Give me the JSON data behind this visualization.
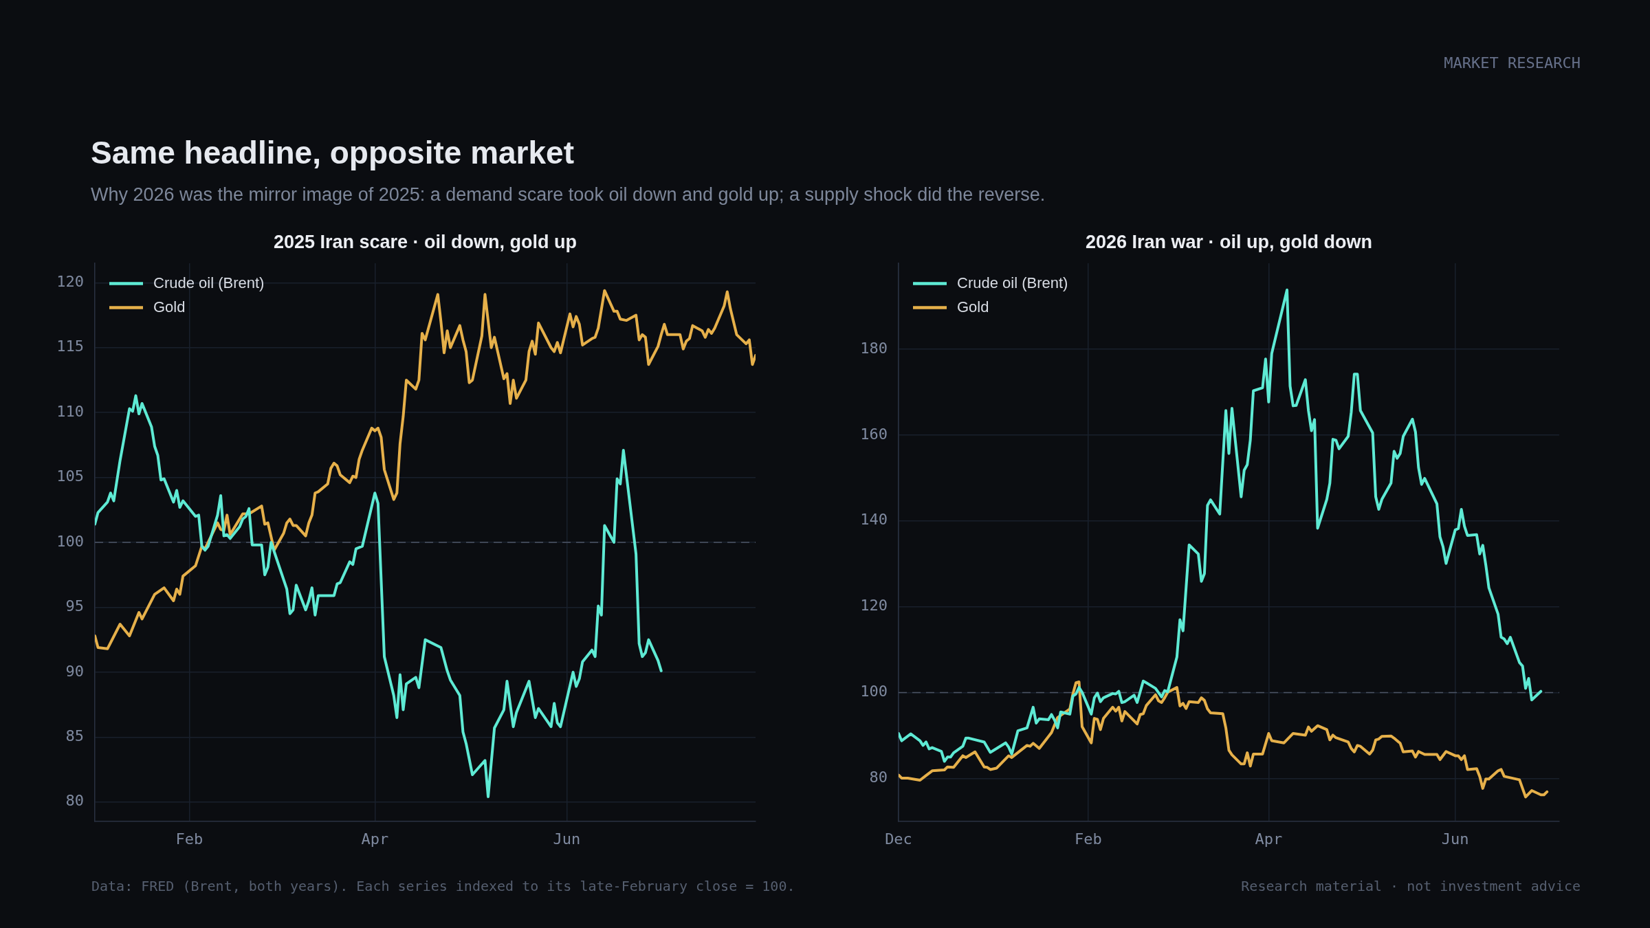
{
  "chart_data": [
    {
      "type": "line",
      "title": "2025 Iran scare · oil down, gold up",
      "annotations": [
        "Same headline, opposite market",
        "Why 2026 was the mirror image of 2025: a demand scare took oil down and gold up; a supply shock did the reverse.",
        "Data: FRED (Brent, both years). Each series indexed to its late-February close = 100."
      ],
      "xlim": [
        "2025-01-02",
        "2025-07-31"
      ],
      "xticks": [
        {
          "value": "2025-02-01",
          "label": "Feb"
        },
        {
          "value": "2025-04-01",
          "label": "Apr"
        },
        {
          "value": "2025-06-01",
          "label": "Jun"
        }
      ],
      "ylim": [
        78.5,
        121.5
      ],
      "yticks": [
        80,
        85,
        90,
        95,
        100,
        105,
        110,
        115,
        120
      ],
      "grid": true,
      "legend": "top left",
      "marker": "none",
      "ref_lines": [
        {
          "axis": "y",
          "value": 100,
          "color": "#4d5566",
          "line_style": "dashed"
        }
      ],
      "series": [
        {
          "name": "Crude oil (Brent)",
          "color": "#5eead4",
          "x": [
            "2025-01-02",
            "2025-01-03",
            "2025-01-06",
            "2025-01-07",
            "2025-01-08",
            "2025-01-10",
            "2025-01-13",
            "2025-01-14",
            "2025-01-15",
            "2025-01-16",
            "2025-01-17",
            "2025-01-20",
            "2025-01-21",
            "2025-01-22",
            "2025-01-23",
            "2025-01-24",
            "2025-01-27",
            "2025-01-28",
            "2025-01-29",
            "2025-01-30",
            "2025-02-03",
            "2025-02-04",
            "2025-02-05",
            "2025-02-06",
            "2025-02-07",
            "2025-02-10",
            "2025-02-11",
            "2025-02-12",
            "2025-02-13",
            "2025-02-14",
            "2025-02-17",
            "2025-02-18",
            "2025-02-19",
            "2025-02-20",
            "2025-02-21",
            "2025-02-24",
            "2025-02-25",
            "2025-02-26",
            "2025-02-27",
            "2025-03-04",
            "2025-03-05",
            "2025-03-06",
            "2025-03-07",
            "2025-03-10",
            "2025-03-11",
            "2025-03-12",
            "2025-03-13",
            "2025-03-14",
            "2025-03-19",
            "2025-03-20",
            "2025-03-21",
            "2025-03-24",
            "2025-03-25",
            "2025-03-26",
            "2025-03-28",
            "2025-04-01",
            "2025-04-02",
            "2025-04-04",
            "2025-04-07",
            "2025-04-08",
            "2025-04-09",
            "2025-04-10",
            "2025-04-11",
            "2025-04-14",
            "2025-04-15",
            "2025-04-17",
            "2025-04-22",
            "2025-04-24",
            "2025-04-25",
            "2025-04-28",
            "2025-04-29",
            "2025-04-30",
            "2025-05-02",
            "2025-05-06",
            "2025-05-07",
            "2025-05-09",
            "2025-05-12",
            "2025-05-13",
            "2025-05-15",
            "2025-05-16",
            "2025-05-20",
            "2025-05-22",
            "2025-05-23",
            "2025-05-27",
            "2025-05-28",
            "2025-05-29",
            "2025-05-30",
            "2025-06-03",
            "2025-06-04",
            "2025-06-05",
            "2025-06-06",
            "2025-06-09",
            "2025-06-10",
            "2025-06-11",
            "2025-06-12",
            "2025-06-13",
            "2025-06-16",
            "2025-06-17",
            "2025-06-18",
            "2025-06-19",
            "2025-06-23",
            "2025-06-24",
            "2025-06-25",
            "2025-06-26",
            "2025-06-27",
            "2025-06-30",
            "2025-07-01"
          ],
          "values": [
            101.4,
            102.3,
            103.1,
            103.8,
            103.2,
            106.3,
            110.3,
            110.1,
            111.3,
            109.9,
            110.7,
            108.9,
            107.4,
            106.7,
            104.8,
            104.9,
            103.1,
            104.0,
            102.7,
            103.2,
            102.0,
            102.1,
            99.7,
            99.4,
            99.7,
            102.1,
            103.6,
            100.5,
            100.6,
            100.3,
            101.2,
            101.8,
            102.0,
            102.6,
            99.8,
            99.8,
            97.5,
            98.1,
            100.0,
            96.4,
            94.5,
            94.8,
            96.7,
            94.8,
            95.5,
            96.5,
            94.4,
            95.9,
            95.9,
            96.8,
            96.9,
            98.5,
            98.3,
            99.5,
            99.7,
            103.8,
            103.0,
            91.2,
            88.2,
            86.5,
            89.8,
            87.1,
            89.1,
            89.6,
            88.8,
            92.5,
            91.9,
            90.1,
            89.4,
            88.2,
            85.4,
            84.5,
            82.1,
            83.2,
            80.4,
            85.7,
            87.1,
            89.3,
            85.8,
            86.9,
            89.3,
            86.5,
            87.2,
            85.8,
            87.6,
            86.1,
            85.8,
            90.0,
            88.9,
            89.5,
            90.8,
            91.7,
            91.2,
            95.1,
            94.4,
            101.3,
            100.0,
            104.9,
            104.5,
            107.1,
            99.1,
            92.2,
            91.2,
            91.5,
            92.5,
            90.9,
            90.1
          ]
        },
        {
          "name": "Gold",
          "color": "#e6b04a",
          "x": [
            "2025-01-02",
            "2025-01-03",
            "2025-01-06",
            "2025-01-10",
            "2025-01-13",
            "2025-01-16",
            "2025-01-17",
            "2025-01-21",
            "2025-01-24",
            "2025-01-27",
            "2025-01-28",
            "2025-01-29",
            "2025-01-30",
            "2025-02-03",
            "2025-02-05",
            "2025-02-06",
            "2025-02-10",
            "2025-02-11",
            "2025-02-12",
            "2025-02-13",
            "2025-02-14",
            "2025-02-18",
            "2025-02-20",
            "2025-02-24",
            "2025-02-25",
            "2025-02-26",
            "2025-02-28",
            "2025-03-03",
            "2025-03-04",
            "2025-03-05",
            "2025-03-06",
            "2025-03-07",
            "2025-03-10",
            "2025-03-11",
            "2025-03-12",
            "2025-03-13",
            "2025-03-14",
            "2025-03-17",
            "2025-03-18",
            "2025-03-19",
            "2025-03-20",
            "2025-03-21",
            "2025-03-24",
            "2025-03-25",
            "2025-03-26",
            "2025-03-27",
            "2025-03-28",
            "2025-03-31",
            "2025-04-01",
            "2025-04-02",
            "2025-04-03",
            "2025-04-04",
            "2025-04-07",
            "2025-04-08",
            "2025-04-09",
            "2025-04-10",
            "2025-04-11",
            "2025-04-14",
            "2025-04-15",
            "2025-04-16",
            "2025-04-17",
            "2025-04-21",
            "2025-04-22",
            "2025-04-23",
            "2025-04-24",
            "2025-04-25",
            "2025-04-28",
            "2025-04-29",
            "2025-04-30",
            "2025-05-01",
            "2025-05-02",
            "2025-05-05",
            "2025-05-06",
            "2025-05-08",
            "2025-05-09",
            "2025-05-12",
            "2025-05-13",
            "2025-05-14",
            "2025-05-15",
            "2025-05-16",
            "2025-05-19",
            "2025-05-20",
            "2025-05-21",
            "2025-05-22",
            "2025-05-23",
            "2025-05-27",
            "2025-05-28",
            "2025-05-29",
            "2025-05-30",
            "2025-06-02",
            "2025-06-03",
            "2025-06-04",
            "2025-06-05",
            "2025-06-06",
            "2025-06-09",
            "2025-06-10",
            "2025-06-11",
            "2025-06-13",
            "2025-06-16",
            "2025-06-17",
            "2025-06-18",
            "2025-06-20",
            "2025-06-23",
            "2025-06-24",
            "2025-06-25",
            "2025-06-26",
            "2025-06-27",
            "2025-06-30",
            "2025-07-01",
            "2025-07-02",
            "2025-07-03",
            "2025-07-07",
            "2025-07-08",
            "2025-07-09",
            "2025-07-10",
            "2025-07-11",
            "2025-07-14",
            "2025-07-15",
            "2025-07-16",
            "2025-07-17",
            "2025-07-18",
            "2025-07-21",
            "2025-07-22",
            "2025-07-23",
            "2025-07-25",
            "2025-07-28",
            "2025-07-29",
            "2025-07-30",
            "2025-07-31"
          ],
          "values": [
            92.8,
            91.9,
            91.8,
            93.7,
            92.8,
            94.6,
            94.1,
            96.0,
            96.5,
            95.5,
            96.4,
            96.0,
            97.4,
            98.2,
            99.7,
            99.5,
            101.5,
            101.0,
            100.9,
            102.1,
            100.6,
            102.2,
            102.2,
            102.8,
            101.4,
            101.5,
            99.4,
            100.7,
            101.5,
            101.8,
            101.3,
            101.3,
            100.5,
            101.5,
            102.1,
            103.8,
            103.9,
            104.5,
            105.7,
            106.1,
            105.9,
            105.2,
            104.6,
            105.1,
            105.0,
            106.4,
            107.1,
            108.8,
            108.6,
            108.8,
            108.1,
            105.6,
            103.3,
            103.8,
            107.6,
            109.7,
            112.5,
            111.8,
            112.5,
            116.1,
            115.6,
            119.1,
            117.0,
            114.6,
            116.3,
            115.0,
            116.7,
            115.6,
            114.7,
            112.3,
            112.5,
            115.9,
            119.1,
            115.0,
            115.8,
            112.6,
            113.0,
            110.7,
            112.5,
            111.1,
            112.5,
            114.7,
            115.5,
            114.5,
            116.9,
            115.0,
            114.7,
            115.4,
            114.6,
            117.6,
            116.6,
            117.4,
            116.8,
            115.2,
            115.7,
            115.8,
            116.5,
            119.4,
            117.8,
            117.8,
            117.2,
            117.1,
            117.5,
            115.6,
            116.0,
            115.8,
            113.7,
            115.1,
            116.0,
            116.8,
            116.0,
            116.0,
            114.9,
            115.5,
            115.7,
            116.7,
            116.3,
            115.8,
            116.4,
            116.1,
            116.5,
            118.2,
            119.3,
            118.0,
            116.0,
            115.3,
            115.6,
            113.7,
            114.4
          ]
        }
      ]
    },
    {
      "type": "line",
      "title": "2026 Iran war · oil up, gold down",
      "annotations": [
        "MARKET RESEARCH",
        "Research material · not investment advice"
      ],
      "xlim": [
        "2025-12-01",
        "2026-07-05"
      ],
      "xticks": [
        {
          "value": "2025-12-01",
          "label": "Dec"
        },
        {
          "value": "2026-02-01",
          "label": "Feb"
        },
        {
          "value": "2026-04-01",
          "label": "Apr"
        },
        {
          "value": "2026-06-01",
          "label": "Jun"
        }
      ],
      "ylim": [
        70,
        200
      ],
      "yticks": [
        80,
        100,
        120,
        140,
        160,
        180
      ],
      "grid": true,
      "legend": "top left",
      "marker": "none",
      "ref_lines": [
        {
          "axis": "y",
          "value": 100,
          "color": "#4d5566",
          "line_style": "dashed"
        }
      ],
      "series": [
        {
          "name": "Crude oil (Brent)",
          "color": "#5eead4",
          "x": [
            "2025-12-01",
            "2025-12-02",
            "2025-12-05",
            "2025-12-08",
            "2025-12-09",
            "2025-12-10",
            "2025-12-11",
            "2025-12-12",
            "2025-12-15",
            "2025-12-16",
            "2025-12-17",
            "2025-12-18",
            "2025-12-19",
            "2025-12-22",
            "2025-12-23",
            "2025-12-24",
            "2025-12-29",
            "2025-12-31",
            "2026-01-05",
            "2026-01-06",
            "2026-01-07",
            "2026-01-09",
            "2026-01-12",
            "2026-01-14",
            "2026-01-15",
            "2026-01-16",
            "2026-01-19",
            "2026-01-20",
            "2026-01-21",
            "2026-01-22",
            "2026-01-23",
            "2026-01-26",
            "2026-01-27",
            "2026-01-28",
            "2026-01-29",
            "2026-01-30",
            "2026-02-02",
            "2026-02-03",
            "2026-02-04",
            "2026-02-05",
            "2026-02-06",
            "2026-02-09",
            "2026-02-10",
            "2026-02-11",
            "2026-02-12",
            "2026-02-13",
            "2026-02-16",
            "2026-02-17",
            "2026-02-19",
            "2026-02-20",
            "2026-02-23",
            "2026-02-25",
            "2026-02-26",
            "2026-02-27",
            "2026-03-02",
            "2026-03-03",
            "2026-03-04",
            "2026-03-06",
            "2026-03-09",
            "2026-03-10",
            "2026-03-11",
            "2026-03-12",
            "2026-03-13",
            "2026-03-16",
            "2026-03-18",
            "2026-03-19",
            "2026-03-20",
            "2026-03-23",
            "2026-03-24",
            "2026-03-25",
            "2026-03-26",
            "2026-03-27",
            "2026-03-30",
            "2026-03-31",
            "2026-04-01",
            "2026-04-02",
            "2026-04-07",
            "2026-04-08",
            "2026-04-09",
            "2026-04-10",
            "2026-04-13",
            "2026-04-14",
            "2026-04-15",
            "2026-04-16",
            "2026-04-17",
            "2026-04-20",
            "2026-04-21",
            "2026-04-22",
            "2026-04-23",
            "2026-04-24",
            "2026-04-27",
            "2026-04-28",
            "2026-04-29",
            "2026-04-30",
            "2026-05-01",
            "2026-05-05",
            "2026-05-06",
            "2026-05-07",
            "2026-05-08",
            "2026-05-11",
            "2026-05-12",
            "2026-05-13",
            "2026-05-14",
            "2026-05-15",
            "2026-05-18",
            "2026-05-19",
            "2026-05-20",
            "2026-05-21",
            "2026-05-22",
            "2026-05-26",
            "2026-05-27",
            "2026-05-28",
            "2026-05-29",
            "2026-06-01",
            "2026-06-02",
            "2026-06-03",
            "2026-06-04",
            "2026-06-05",
            "2026-06-08",
            "2026-06-09",
            "2026-06-10",
            "2026-06-11",
            "2026-06-12",
            "2026-06-15",
            "2026-06-16",
            "2026-06-17",
            "2026-06-18",
            "2026-06-19",
            "2026-06-22",
            "2026-06-23",
            "2026-06-24",
            "2026-06-25",
            "2026-06-26",
            "2026-06-29"
          ],
          "values": [
            90.5,
            88.8,
            90.4,
            88.8,
            87.7,
            88.5,
            86.9,
            87.2,
            86.3,
            84.0,
            85.0,
            85.0,
            86.0,
            87.5,
            89.4,
            89.4,
            88.5,
            86.1,
            88.3,
            87.3,
            85.7,
            91.1,
            91.8,
            96.6,
            92.9,
            93.9,
            93.7,
            94.9,
            93.6,
            91.8,
            95.5,
            95.0,
            99.2,
            99.7,
            101.2,
            100.1,
            95.0,
            98.8,
            99.9,
            97.9,
            98.8,
            99.8,
            99.7,
            100.3,
            97.7,
            97.9,
            99.4,
            97.7,
            102.7,
            102.3,
            101.0,
            99.0,
            100.5,
            100.2,
            108.3,
            117.0,
            114.4,
            134.4,
            132.3,
            125.9,
            127.7,
            143.6,
            144.9,
            141.6,
            165.7,
            155.7,
            166.2,
            145.6,
            151.8,
            153.1,
            158.8,
            170.3,
            171.0,
            177.7,
            167.7,
            179.0,
            193.8,
            171.4,
            166.8,
            166.9,
            172.9,
            165.7,
            161.0,
            163.6,
            138.3,
            145.0,
            148.8,
            159.0,
            158.8,
            156.8,
            159.7,
            165.3,
            174.2,
            174.2,
            165.7,
            160.5,
            145.6,
            142.7,
            145.0,
            148.8,
            156.2,
            154.6,
            155.7,
            159.7,
            163.7,
            160.7,
            152.4,
            148.5,
            149.9,
            144.0,
            136.3,
            134.0,
            130.1,
            137.9,
            138.2,
            142.7,
            138.8,
            136.6,
            136.8,
            132.3,
            134.3,
            129.7,
            124.4,
            118.3,
            112.9,
            112.5,
            111.4,
            112.9,
            107.0,
            106.2,
            101.0,
            103.3,
            98.3,
            100.3
          ]
        },
        {
          "name": "Gold",
          "color": "#e6b04a",
          "x": [
            "2025-12-01",
            "2025-12-02",
            "2025-12-04",
            "2025-12-08",
            "2025-12-10",
            "2025-12-12",
            "2025-12-16",
            "2025-12-17",
            "2025-12-19",
            "2025-12-22",
            "2025-12-23",
            "2025-12-26",
            "2025-12-29",
            "2025-12-30",
            "2025-12-31",
            "2026-01-02",
            "2026-01-06",
            "2026-01-07",
            "2026-01-12",
            "2026-01-13",
            "2026-01-14",
            "2026-01-16",
            "2026-01-20",
            "2026-01-22",
            "2026-01-26",
            "2026-01-27",
            "2026-01-28",
            "2026-01-29",
            "2026-01-30",
            "2026-02-02",
            "2026-02-03",
            "2026-02-04",
            "2026-02-05",
            "2026-02-06",
            "2026-02-09",
            "2026-02-10",
            "2026-02-11",
            "2026-02-12",
            "2026-02-13",
            "2026-02-17",
            "2026-02-18",
            "2026-02-19",
            "2026-02-20",
            "2026-02-23",
            "2026-02-24",
            "2026-02-25",
            "2026-02-26",
            "2026-02-27",
            "2026-03-02",
            "2026-03-03",
            "2026-03-04",
            "2026-03-05",
            "2026-03-06",
            "2026-03-09",
            "2026-03-10",
            "2026-03-11",
            "2026-03-12",
            "2026-03-13",
            "2026-03-17",
            "2026-03-18",
            "2026-03-19",
            "2026-03-20",
            "2026-03-23",
            "2026-03-24",
            "2026-03-25",
            "2026-03-26",
            "2026-03-27",
            "2026-03-30",
            "2026-04-01",
            "2026-04-02",
            "2026-04-06",
            "2026-04-09",
            "2026-04-13",
            "2026-04-14",
            "2026-04-15",
            "2026-04-17",
            "2026-04-20",
            "2026-04-21",
            "2026-04-22",
            "2026-04-23",
            "2026-04-27",
            "2026-04-28",
            "2026-04-29",
            "2026-04-30",
            "2026-05-01",
            "2026-05-04",
            "2026-05-05",
            "2026-05-06",
            "2026-05-07",
            "2026-05-08",
            "2026-05-11",
            "2026-05-12",
            "2026-05-14",
            "2026-05-15",
            "2026-05-18",
            "2026-05-19",
            "2026-05-20",
            "2026-05-22",
            "2026-05-26",
            "2026-05-27",
            "2026-05-29",
            "2026-06-01",
            "2026-06-02",
            "2026-06-03",
            "2026-06-04",
            "2026-06-05",
            "2026-06-08",
            "2026-06-09",
            "2026-06-10",
            "2026-06-11",
            "2026-06-12",
            "2026-06-15",
            "2026-06-16",
            "2026-06-17",
            "2026-06-22",
            "2026-06-23",
            "2026-06-24",
            "2026-06-26",
            "2026-06-29",
            "2026-06-30",
            "2026-07-01"
          ],
          "values": [
            80.8,
            80.1,
            80.1,
            79.6,
            80.7,
            81.8,
            82.0,
            82.7,
            82.6,
            85.3,
            84.9,
            86.2,
            82.7,
            82.6,
            82.1,
            82.4,
            85.3,
            84.9,
            87.7,
            87.5,
            88.2,
            87.0,
            90.7,
            94.2,
            96.2,
            99.7,
            102.3,
            102.5,
            92.1,
            88.3,
            94.0,
            93.8,
            91.4,
            94.0,
            96.6,
            95.7,
            96.6,
            93.4,
            95.6,
            92.7,
            94.9,
            95.1,
            97.0,
            99.5,
            98.1,
            97.7,
            98.8,
            100.1,
            101.2,
            96.9,
            97.5,
            96.3,
            97.9,
            97.7,
            98.8,
            98.2,
            96.2,
            95.3,
            95.1,
            91.8,
            86.6,
            85.5,
            83.4,
            83.4,
            86.0,
            82.9,
            85.7,
            85.7,
            90.5,
            88.8,
            88.3,
            90.5,
            90.1,
            92.0,
            91.0,
            92.3,
            91.4,
            89.0,
            90.1,
            89.5,
            88.5,
            87.0,
            86.2,
            87.7,
            87.5,
            85.7,
            86.6,
            89.0,
            89.2,
            89.8,
            89.9,
            89.4,
            88.2,
            86.2,
            86.4,
            85.0,
            86.3,
            85.6,
            85.6,
            84.4,
            86.3,
            85.3,
            85.3,
            84.4,
            85.3,
            82.1,
            82.3,
            80.5,
            77.7,
            79.9,
            79.9,
            81.8,
            82.1,
            80.5,
            79.7,
            77.7,
            75.7,
            77.2,
            76.2,
            76.2,
            76.9
          ]
        }
      ]
    }
  ]
}
